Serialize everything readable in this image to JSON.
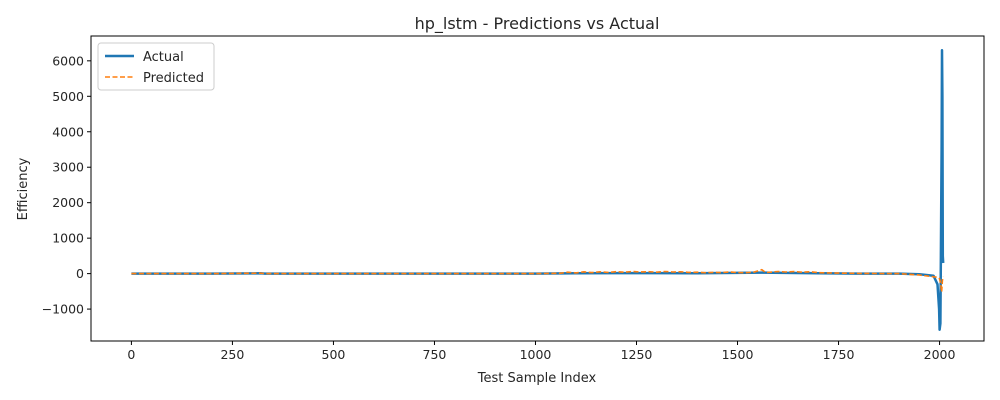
{
  "chart_data": {
    "type": "line",
    "title": "hp_lstm - Predictions vs Actual",
    "xlabel": "Test Sample Index",
    "ylabel": "Efficiency",
    "xlim": [
      -100,
      2110
    ],
    "ylim": [
      -1900,
      6700
    ],
    "x_ticks": [
      0,
      250,
      500,
      750,
      1000,
      1250,
      1500,
      1750,
      2000
    ],
    "y_ticks": [
      -1000,
      0,
      1000,
      2000,
      3000,
      4000,
      5000,
      6000
    ],
    "x_tick_labels": [
      "0",
      "250",
      "500",
      "750",
      "1000",
      "1250",
      "1500",
      "1750",
      "2000"
    ],
    "y_tick_labels": [
      "−1000",
      "0",
      "1000",
      "2000",
      "3000",
      "4000",
      "5000",
      "6000"
    ],
    "grid": false,
    "legend_position": "top-left",
    "series": [
      {
        "name": "Actual",
        "color": "#1f77b4",
        "style": "solid",
        "points": [
          [
            0,
            0
          ],
          [
            200,
            0
          ],
          [
            320,
            10
          ],
          [
            330,
            0
          ],
          [
            600,
            0
          ],
          [
            800,
            0
          ],
          [
            1000,
            0
          ],
          [
            1100,
            10
          ],
          [
            1200,
            15
          ],
          [
            1300,
            15
          ],
          [
            1400,
            10
          ],
          [
            1560,
            30
          ],
          [
            1700,
            10
          ],
          [
            1800,
            0
          ],
          [
            1900,
            0
          ],
          [
            1950,
            -20
          ],
          [
            1985,
            -60
          ],
          [
            1995,
            -300
          ],
          [
            1999,
            -1000
          ],
          [
            2000,
            -1580
          ],
          [
            2002,
            -1400
          ],
          [
            2003,
            200
          ],
          [
            2005,
            3500
          ],
          [
            2006,
            6300
          ],
          [
            2007,
            5000
          ],
          [
            2008,
            500
          ],
          [
            2009,
            300
          ]
        ]
      },
      {
        "name": "Predicted",
        "color": "#ff7f0e",
        "style": "dashed",
        "points": [
          [
            0,
            0
          ],
          [
            200,
            0
          ],
          [
            320,
            12
          ],
          [
            330,
            0
          ],
          [
            600,
            0
          ],
          [
            800,
            0
          ],
          [
            1000,
            0
          ],
          [
            1060,
            10
          ],
          [
            1080,
            40
          ],
          [
            1100,
            20
          ],
          [
            1120,
            50
          ],
          [
            1140,
            30
          ],
          [
            1160,
            50
          ],
          [
            1180,
            35
          ],
          [
            1200,
            55
          ],
          [
            1220,
            40
          ],
          [
            1240,
            60
          ],
          [
            1260,
            45
          ],
          [
            1280,
            55
          ],
          [
            1300,
            40
          ],
          [
            1320,
            60
          ],
          [
            1340,
            45
          ],
          [
            1360,
            50
          ],
          [
            1380,
            35
          ],
          [
            1400,
            40
          ],
          [
            1420,
            25
          ],
          [
            1440,
            35
          ],
          [
            1460,
            30
          ],
          [
            1480,
            45
          ],
          [
            1500,
            30
          ],
          [
            1520,
            25
          ],
          [
            1540,
            40
          ],
          [
            1560,
            110
          ],
          [
            1570,
            30
          ],
          [
            1600,
            60
          ],
          [
            1620,
            45
          ],
          [
            1640,
            60
          ],
          [
            1660,
            40
          ],
          [
            1680,
            50
          ],
          [
            1700,
            30
          ],
          [
            1720,
            20
          ],
          [
            1800,
            5
          ],
          [
            1900,
            0
          ],
          [
            1950,
            -40
          ],
          [
            1985,
            -90
          ],
          [
            1995,
            -100
          ],
          [
            2000,
            -150
          ],
          [
            2003,
            -300
          ],
          [
            2005,
            -520
          ],
          [
            2007,
            -200
          ],
          [
            2009,
            -80
          ]
        ]
      }
    ]
  }
}
